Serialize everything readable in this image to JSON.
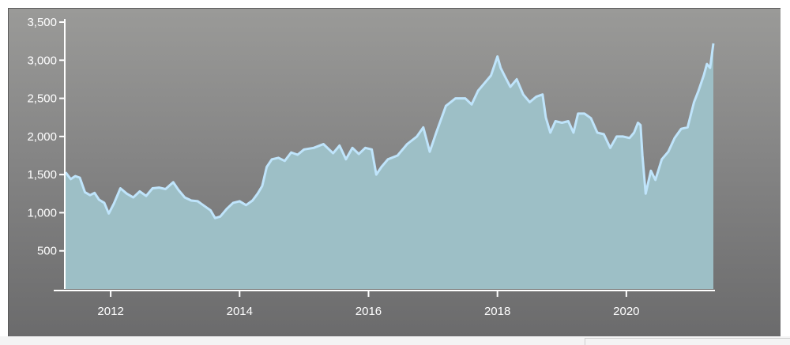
{
  "colors": {
    "fill": "#9dbfc6",
    "line": "#bfe4fb",
    "axis": "#ffffff",
    "text": "#ffffff"
  },
  "chart_data": {
    "type": "area",
    "title": "",
    "xlabel": "",
    "ylabel": "",
    "grid": false,
    "legend": "none",
    "xlim": [
      2011.3,
      2021.35
    ],
    "ylim": [
      0,
      3500
    ],
    "x_ticks": [
      2012,
      2014,
      2016,
      2018,
      2020
    ],
    "x_tick_labels": [
      "2012",
      "2014",
      "2016",
      "2018",
      "2020"
    ],
    "y_ticks": [
      500,
      1000,
      1500,
      2000,
      2500,
      3000,
      3500
    ],
    "y_tick_labels": [
      "500",
      "1,000",
      "1,500",
      "2,000",
      "2,500",
      "3,000",
      "3,500"
    ],
    "series": [
      {
        "x": [
          2011.3,
          2011.38,
          2011.45,
          2011.52,
          2011.6,
          2011.68,
          2011.75,
          2011.82,
          2011.9,
          2011.97,
          2012.05,
          2012.15,
          2012.25,
          2012.35,
          2012.45,
          2012.55,
          2012.65,
          2012.75,
          2012.85,
          2012.97,
          2013.05,
          2013.15,
          2013.25,
          2013.35,
          2013.45,
          2013.55,
          2013.62,
          2013.7,
          2013.8,
          2013.9,
          2014.0,
          2014.1,
          2014.2,
          2014.28,
          2014.35,
          2014.42,
          2014.5,
          2014.6,
          2014.7,
          2014.8,
          2014.9,
          2015.0,
          2015.15,
          2015.3,
          2015.45,
          2015.55,
          2015.65,
          2015.75,
          2015.85,
          2015.95,
          2016.05,
          2016.12,
          2016.2,
          2016.3,
          2016.45,
          2016.6,
          2016.75,
          2016.85,
          2016.95,
          2017.05,
          2017.2,
          2017.35,
          2017.5,
          2017.6,
          2017.7,
          2017.8,
          2017.9,
          2018.0,
          2018.05,
          2018.12,
          2018.2,
          2018.3,
          2018.4,
          2018.5,
          2018.6,
          2018.7,
          2018.75,
          2018.82,
          2018.9,
          2019.0,
          2019.1,
          2019.18,
          2019.25,
          2019.35,
          2019.45,
          2019.55,
          2019.65,
          2019.75,
          2019.85,
          2019.95,
          2020.05,
          2020.12,
          2020.18,
          2020.22,
          2020.25,
          2020.3,
          2020.38,
          2020.45,
          2020.55,
          2020.65,
          2020.75,
          2020.85,
          2020.95,
          2021.05,
          2021.12,
          2021.2,
          2021.25,
          2021.3,
          2021.35
        ],
        "values": [
          1530,
          1440,
          1480,
          1460,
          1270,
          1230,
          1260,
          1170,
          1130,
          990,
          1120,
          1320,
          1250,
          1200,
          1280,
          1220,
          1320,
          1330,
          1310,
          1400,
          1300,
          1200,
          1160,
          1150,
          1090,
          1030,
          930,
          950,
          1050,
          1130,
          1150,
          1100,
          1160,
          1250,
          1350,
          1600,
          1700,
          1720,
          1680,
          1790,
          1760,
          1830,
          1850,
          1900,
          1780,
          1880,
          1700,
          1850,
          1770,
          1850,
          1830,
          1500,
          1600,
          1700,
          1750,
          1900,
          2000,
          2120,
          1800,
          2050,
          2400,
          2500,
          2500,
          2420,
          2600,
          2700,
          2800,
          3050,
          2900,
          2780,
          2650,
          2750,
          2550,
          2450,
          2520,
          2550,
          2250,
          2050,
          2200,
          2180,
          2200,
          2050,
          2300,
          2300,
          2240,
          2050,
          2030,
          1850,
          2000,
          2000,
          1980,
          2050,
          2180,
          2150,
          1750,
          1250,
          1550,
          1430,
          1700,
          1800,
          1980,
          2100,
          2120,
          2450,
          2600,
          2800,
          2950,
          2900,
          3220
        ]
      }
    ]
  }
}
